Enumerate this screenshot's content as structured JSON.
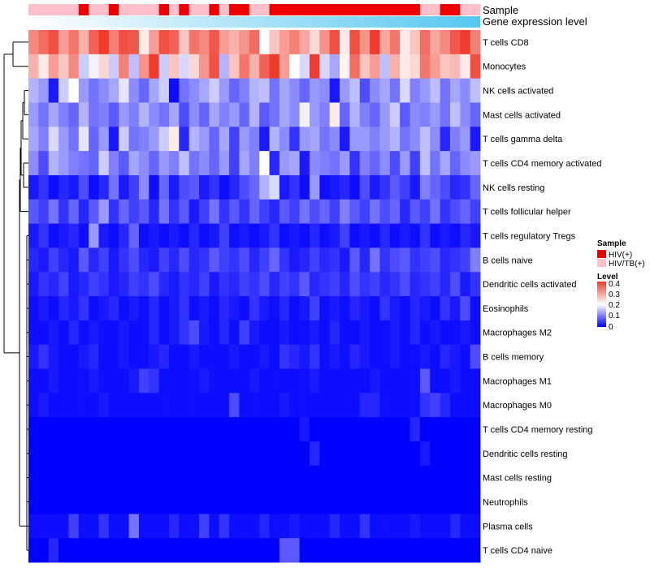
{
  "chart_data": {
    "type": "heatmap",
    "title": "",
    "annotations": {
      "sample_track_label": "Sample",
      "expression_track_label": "Gene expression level",
      "sample_groups": [
        "HIV(+)",
        "HIV/TB(+)"
      ],
      "sample_colors": [
        "#ee0000",
        "#ffc0cb"
      ],
      "column_sample_group": [
        "HIV/TB(+)",
        "HIV/TB(+)",
        "HIV/TB(+)",
        "HIV/TB(+)",
        "HIV/TB(+)",
        "HIV(+)",
        "HIV/TB(+)",
        "HIV/TB(+)",
        "HIV(+)",
        "HIV/TB(+)",
        "HIV/TB(+)",
        "HIV/TB(+)",
        "HIV/TB(+)",
        "HIV(+)",
        "HIV/TB(+)",
        "HIV(+)",
        "HIV/TB(+)",
        "HIV/TB(+)",
        "HIV(+)",
        "HIV/TB(+)",
        "HIV(+)",
        "HIV(+)",
        "HIV/TB(+)",
        "HIV/TB(+)",
        "HIV(+)",
        "HIV(+)",
        "HIV(+)",
        "HIV(+)",
        "HIV(+)",
        "HIV(+)",
        "HIV(+)",
        "HIV(+)",
        "HIV(+)",
        "HIV(+)",
        "HIV(+)",
        "HIV(+)",
        "HIV(+)",
        "HIV(+)",
        "HIV(+)",
        "HIV/TB(+)",
        "HIV/TB(+)",
        "HIV(+)",
        "HIV(+)",
        "HIV/TB(+)",
        "HIV/TB(+)"
      ],
      "expression_gradient": [
        "#ffffff",
        "#56c8f0"
      ]
    },
    "row_labels": [
      "T cells CD8",
      "Monocytes",
      "NK cells activated",
      "Mast cells activated",
      "T cells gamma delta",
      "T cells CD4 memory activated",
      "NK cells resting",
      "T cells follicular helper",
      "T cells regulatory  Tregs",
      "B cells naive",
      "Dendritic cells activated",
      "Eosinophils",
      "Macrophages M2",
      "B cells memory",
      "Macrophages M1",
      "Macrophages M0",
      "T cells CD4 memory resting",
      "Dendritic cells resting",
      "Mast cells resting",
      "Neutrophils",
      "Plasma cells",
      "T cells CD4 naive"
    ],
    "values": [
      [
        0.32,
        0.35,
        0.38,
        0.3,
        0.34,
        0.28,
        0.36,
        0.42,
        0.33,
        0.38,
        0.37,
        0.22,
        0.3,
        0.38,
        0.36,
        0.26,
        0.34,
        0.32,
        0.37,
        0.3,
        0.28,
        0.31,
        0.35,
        0.2,
        0.26,
        0.3,
        0.33,
        0.29,
        0.24,
        0.31,
        0.38,
        0.22,
        0.38,
        0.31,
        0.4,
        0.29,
        0.34,
        0.22,
        0.26,
        0.35,
        0.29,
        0.32,
        0.37,
        0.4,
        0.33
      ],
      [
        0.28,
        0.22,
        0.3,
        0.26,
        0.32,
        0.16,
        0.19,
        0.24,
        0.16,
        0.33,
        0.15,
        0.31,
        0.41,
        0.16,
        0.26,
        0.17,
        0.24,
        0.31,
        0.38,
        0.14,
        0.26,
        0.34,
        0.28,
        0.36,
        0.43,
        0.3,
        0.2,
        0.17,
        0.42,
        0.17,
        0.13,
        0.21,
        0.35,
        0.26,
        0.3,
        0.15,
        0.28,
        0.22,
        0.24,
        0.34,
        0.3,
        0.26,
        0.27,
        0.22,
        0.38
      ],
      [
        0.14,
        0.12,
        0.02,
        0.16,
        0.2,
        0.12,
        0.09,
        0.11,
        0.13,
        0.18,
        0.11,
        0.08,
        0.13,
        0.16,
        0.01,
        0.09,
        0.11,
        0.13,
        0.16,
        0.12,
        0.08,
        0.1,
        0.14,
        0.15,
        0.09,
        0.13,
        0.11,
        0.08,
        0.12,
        0.11,
        0.02,
        0.12,
        0.15,
        0.06,
        0.11,
        0.13,
        0.09,
        0.17,
        0.1,
        0.12,
        0.15,
        0.09,
        0.13,
        0.11,
        0.15
      ],
      [
        0.12,
        0.09,
        0.13,
        0.1,
        0.08,
        0.14,
        0.09,
        0.1,
        0.07,
        0.12,
        0.1,
        0.14,
        0.11,
        0.09,
        0.13,
        0.06,
        0.11,
        0.08,
        0.13,
        0.1,
        0.12,
        0.08,
        0.14,
        0.07,
        0.09,
        0.13,
        0.11,
        0.19,
        0.12,
        0.1,
        0.22,
        0.08,
        0.14,
        0.1,
        0.08,
        0.12,
        0.16,
        0.07,
        0.11,
        0.1,
        0.12,
        0.09,
        0.15,
        0.11,
        0.08
      ],
      [
        0.13,
        0.1,
        0.17,
        0.12,
        0.09,
        0.18,
        0.08,
        0.12,
        0.02,
        0.16,
        0.09,
        0.1,
        0.12,
        0.16,
        0.22,
        0.03,
        0.14,
        0.12,
        0.08,
        0.13,
        0.05,
        0.12,
        0.1,
        0.02,
        0.14,
        0.11,
        0.04,
        0.12,
        0.13,
        0.09,
        0.11,
        0.02,
        0.12,
        0.12,
        0.1,
        0.12,
        0.14,
        0.09,
        0.11,
        0.15,
        0.11,
        0.03,
        0.1,
        0.12,
        0.02
      ],
      [
        0.11,
        0.06,
        0.14,
        0.12,
        0.1,
        0.09,
        0.08,
        0.16,
        0.1,
        0.07,
        0.13,
        0.11,
        0.08,
        0.12,
        0.1,
        0.15,
        0.09,
        0.11,
        0.08,
        0.12,
        0.05,
        0.13,
        0.1,
        0.2,
        0.03,
        0.12,
        0.13,
        0.02,
        0.11,
        0.1,
        0.09,
        0.12,
        0.04,
        0.1,
        0.08,
        0.11,
        0.06,
        0.12,
        0.05,
        0.15,
        0.09,
        0.13,
        0.08,
        0.11,
        0.12
      ],
      [
        0.02,
        0.04,
        0.01,
        0.03,
        0.02,
        0.06,
        0.01,
        0.03,
        0.09,
        0.02,
        0.05,
        0.11,
        0.01,
        0.08,
        0.02,
        0.06,
        0.07,
        0.02,
        0.04,
        0.01,
        0.03,
        0.06,
        0.08,
        0.14,
        0.17,
        0.02,
        0.04,
        0.01,
        0.12,
        0.01,
        0.02,
        0.03,
        0.01,
        0.06,
        0.02,
        0.04,
        0.07,
        0.05,
        0.02,
        0.1,
        0.08,
        0.06,
        0.03,
        0.04,
        0.08
      ],
      [
        0.07,
        0.05,
        0.09,
        0.04,
        0.08,
        0.03,
        0.07,
        0.12,
        0.04,
        0.08,
        0.05,
        0.07,
        0.03,
        0.09,
        0.04,
        0.07,
        0.02,
        0.05,
        0.09,
        0.04,
        0.07,
        0.04,
        0.08,
        0.05,
        0.03,
        0.07,
        0.05,
        0.09,
        0.06,
        0.08,
        0.05,
        0.1,
        0.07,
        0.05,
        0.09,
        0.06,
        0.08,
        0.03,
        0.07,
        0.05,
        0.09,
        0.04,
        0.06,
        0.08,
        0.05
      ],
      [
        0.02,
        0.04,
        0.01,
        0.02,
        0.03,
        0.01,
        0.12,
        0.02,
        0.01,
        0.03,
        0.08,
        0.01,
        0.02,
        0.01,
        0.02,
        0.01,
        0.03,
        0.01,
        0.02,
        0.05,
        0.01,
        0.02,
        0.01,
        0.02,
        0.04,
        0.01,
        0.02,
        0.01,
        0.03,
        0.01,
        0.02,
        0.05,
        0.01,
        0.02,
        0.01,
        0.03,
        0.01,
        0.02,
        0.01,
        0.04,
        0.01,
        0.02,
        0.01,
        0.03,
        0.02
      ],
      [
        0.03,
        0.02,
        0.05,
        0.03,
        0.02,
        0.07,
        0.03,
        0.05,
        0.02,
        0.04,
        0.06,
        0.03,
        0.02,
        0.05,
        0.03,
        0.06,
        0.03,
        0.04,
        0.07,
        0.05,
        0.04,
        0.06,
        0.03,
        0.05,
        0.08,
        0.04,
        0.02,
        0.03,
        0.05,
        0.03,
        0.04,
        0.02,
        0.07,
        0.03,
        0.09,
        0.04,
        0.06,
        0.07,
        0.04,
        0.05,
        0.06,
        0.03,
        0.04,
        0.05,
        0.1
      ],
      [
        0.02,
        0.04,
        0.03,
        0.05,
        0.02,
        0.03,
        0.05,
        0.04,
        0.02,
        0.03,
        0.05,
        0.04,
        0.06,
        0.03,
        0.02,
        0.04,
        0.03,
        0.05,
        0.02,
        0.04,
        0.03,
        0.05,
        0.04,
        0.06,
        0.03,
        0.05,
        0.04,
        0.07,
        0.03,
        0.04,
        0.05,
        0.03,
        0.06,
        0.04,
        0.05,
        0.03,
        0.04,
        0.06,
        0.03,
        0.04,
        0.05,
        0.03,
        0.06,
        0.02,
        0.04
      ],
      [
        0.01,
        0.02,
        0.01,
        0.03,
        0.02,
        0.04,
        0.01,
        0.02,
        0.03,
        0.01,
        0.02,
        0.01,
        0.03,
        0.01,
        0.02,
        0.04,
        0.01,
        0.02,
        0.01,
        0.03,
        0.02,
        0.01,
        0.04,
        0.02,
        0.01,
        0.03,
        0.01,
        0.02,
        0.05,
        0.01,
        0.02,
        0.01,
        0.03,
        0.02,
        0.01,
        0.04,
        0.02,
        0.01,
        0.03,
        0.02,
        0.01,
        0.04,
        0.02,
        0.06,
        0.01
      ],
      [
        0.01,
        0.01,
        0.02,
        0.01,
        0.03,
        0.01,
        0.02,
        0.01,
        0.01,
        0.02,
        0.01,
        0.01,
        0.03,
        0.01,
        0.02,
        0.04,
        0.06,
        0.02,
        0.01,
        0.03,
        0.01,
        0.05,
        0.02,
        0.01,
        0.01,
        0.02,
        0.01,
        0.01,
        0.02,
        0.01,
        0.03,
        0.01,
        0.01,
        0.02,
        0.01,
        0.01,
        0.02,
        0.01,
        0.03,
        0.01,
        0.02,
        0.01,
        0.01,
        0.02,
        0.01
      ],
      [
        0.02,
        0.04,
        0.02,
        0.01,
        0.01,
        0.02,
        0.03,
        0.01,
        0.01,
        0.02,
        0.01,
        0.01,
        0.02,
        0.03,
        0.01,
        0.01,
        0.02,
        0.01,
        0.01,
        0.01,
        0.02,
        0.01,
        0.01,
        0.02,
        0.01,
        0.04,
        0.03,
        0.02,
        0.04,
        0.01,
        0.02,
        0.01,
        0.03,
        0.02,
        0.01,
        0.01,
        0.02,
        0.01,
        0.01,
        0.02,
        0.01,
        0.03,
        0.02,
        0.01,
        0.06
      ],
      [
        0.01,
        0.01,
        0.02,
        0.01,
        0.01,
        0.01,
        0.02,
        0.01,
        0.01,
        0.01,
        0.02,
        0.05,
        0.04,
        0.01,
        0.01,
        0.01,
        0.01,
        0.02,
        0.01,
        0.01,
        0.01,
        0.01,
        0.02,
        0.01,
        0.01,
        0.01,
        0.01,
        0.01,
        0.02,
        0.01,
        0.01,
        0.01,
        0.01,
        0.01,
        0.02,
        0.01,
        0.01,
        0.01,
        0.01,
        0.07,
        0.01,
        0.01,
        0.02,
        0.01,
        0.01
      ],
      [
        0.01,
        0.02,
        0.01,
        0.01,
        0.01,
        0.01,
        0.01,
        0.02,
        0.01,
        0.01,
        0.01,
        0.01,
        0.01,
        0.01,
        0.01,
        0.01,
        0.01,
        0.01,
        0.01,
        0.01,
        0.06,
        0.01,
        0.01,
        0.01,
        0.01,
        0.02,
        0.01,
        0.01,
        0.01,
        0.01,
        0.01,
        0.01,
        0.01,
        0.03,
        0.03,
        0.01,
        0.01,
        0.01,
        0.01,
        0.04,
        0.05,
        0.03,
        0.01,
        0.01,
        0.01
      ],
      [
        0.0,
        0.0,
        0.0,
        0.0,
        0.0,
        0.0,
        0.0,
        0.0,
        0.0,
        0.0,
        0.0,
        0.0,
        0.0,
        0.0,
        0.0,
        0.0,
        0.0,
        0.0,
        0.0,
        0.0,
        0.0,
        0.0,
        0.0,
        0.0,
        0.0,
        0.0,
        0.0,
        0.02,
        0.0,
        0.0,
        0.0,
        0.0,
        0.0,
        0.0,
        0.0,
        0.0,
        0.0,
        0.0,
        0.03,
        0.0,
        0.0,
        0.0,
        0.0,
        0.0,
        0.0
      ],
      [
        0.0,
        0.0,
        0.0,
        0.0,
        0.0,
        0.0,
        0.0,
        0.0,
        0.0,
        0.0,
        0.0,
        0.0,
        0.0,
        0.0,
        0.0,
        0.0,
        0.0,
        0.0,
        0.0,
        0.0,
        0.0,
        0.0,
        0.0,
        0.0,
        0.0,
        0.0,
        0.0,
        0.0,
        0.03,
        0.0,
        0.0,
        0.0,
        0.0,
        0.0,
        0.0,
        0.0,
        0.0,
        0.0,
        0.0,
        0.02,
        0.0,
        0.0,
        0.0,
        0.0,
        0.0
      ],
      [
        0.0,
        0.0,
        0.0,
        0.0,
        0.0,
        0.0,
        0.0,
        0.0,
        0.0,
        0.0,
        0.0,
        0.0,
        0.0,
        0.0,
        0.0,
        0.0,
        0.0,
        0.0,
        0.0,
        0.0,
        0.0,
        0.0,
        0.0,
        0.0,
        0.0,
        0.0,
        0.0,
        0.0,
        0.0,
        0.0,
        0.0,
        0.0,
        0.0,
        0.0,
        0.0,
        0.0,
        0.0,
        0.0,
        0.0,
        0.0,
        0.0,
        0.0,
        0.0,
        0.0,
        0.0
      ],
      [
        0.0,
        0.0,
        0.0,
        0.0,
        0.0,
        0.0,
        0.0,
        0.0,
        0.0,
        0.0,
        0.0,
        0.0,
        0.0,
        0.0,
        0.0,
        0.0,
        0.0,
        0.0,
        0.0,
        0.0,
        0.0,
        0.0,
        0.0,
        0.0,
        0.0,
        0.0,
        0.0,
        0.0,
        0.0,
        0.0,
        0.0,
        0.0,
        0.0,
        0.0,
        0.0,
        0.0,
        0.0,
        0.0,
        0.0,
        0.0,
        0.0,
        0.0,
        0.0,
        0.0,
        0.0
      ],
      [
        0.01,
        0.01,
        0.01,
        0.01,
        0.05,
        0.01,
        0.01,
        0.04,
        0.01,
        0.01,
        0.09,
        0.01,
        0.01,
        0.01,
        0.03,
        0.01,
        0.01,
        0.05,
        0.01,
        0.04,
        0.01,
        0.01,
        0.01,
        0.03,
        0.01,
        0.01,
        0.02,
        0.01,
        0.01,
        0.01,
        0.03,
        0.01,
        0.01,
        0.04,
        0.01,
        0.01,
        0.01,
        0.01,
        0.02,
        0.01,
        0.01,
        0.01,
        0.03,
        0.01,
        0.01
      ],
      [
        0.0,
        0.0,
        0.03,
        0.0,
        0.0,
        0.0,
        0.0,
        0.0,
        0.0,
        0.0,
        0.0,
        0.0,
        0.0,
        0.0,
        0.0,
        0.0,
        0.0,
        0.0,
        0.0,
        0.0,
        0.0,
        0.0,
        0.0,
        0.0,
        0.0,
        0.07,
        0.07,
        0.0,
        0.0,
        0.0,
        0.0,
        0.0,
        0.0,
        0.0,
        0.0,
        0.0,
        0.0,
        0.0,
        0.0,
        0.0,
        0.0,
        0.0,
        0.0,
        0.0,
        0.0
      ]
    ],
    "color_scale": {
      "low": "#0000ff",
      "mid": "#ffffff",
      "high": "#ef3b2c",
      "domain": [
        0,
        0.2,
        0.4
      ]
    },
    "legend_sample": {
      "title": "Sample",
      "items": [
        "HIV(+)",
        "HIV/TB(+)"
      ]
    },
    "legend_level": {
      "title": "Level",
      "ticks": [
        "0.4",
        "0.3",
        "0.2",
        "0.1",
        "0"
      ]
    },
    "row_dendrogram": true,
    "legend_position": "right"
  }
}
